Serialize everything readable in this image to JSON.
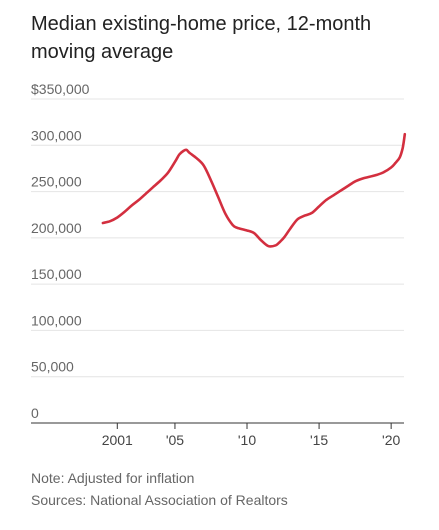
{
  "chart_data": {
    "type": "line",
    "title": "Median existing-home price, 12-month moving average",
    "xlabel": "",
    "ylabel": "",
    "x_tick_labels": [
      "2001",
      "'05",
      "'10",
      "'15",
      "'20"
    ],
    "x_tick_values": [
      2001,
      2005,
      2010,
      2015,
      2020
    ],
    "y_tick_labels": [
      "$350,000",
      "300,000",
      "250,000",
      "200,000",
      "150,000",
      "100,000",
      "50,000",
      "0"
    ],
    "y_tick_values": [
      350000,
      300000,
      250000,
      200000,
      150000,
      100000,
      50000,
      0
    ],
    "xlim": [
      1999.8,
      2021.1
    ],
    "ylim": [
      0,
      350000
    ],
    "grid": true,
    "line_color": "#d32f3f",
    "series": [
      {
        "x": [
          2000.0,
          2000.5,
          2001.0,
          2001.5,
          2002.0,
          2002.5,
          2003.0,
          2003.5,
          2004.0,
          2004.5,
          2005.0,
          2005.3,
          2005.6,
          2005.8,
          2006.0,
          2006.5,
          2007.0,
          2007.5,
          2008.0,
          2008.5,
          2009.0,
          2009.3,
          2009.5,
          2010.0,
          2010.5,
          2011.0,
          2011.5,
          2012.0,
          2012.3,
          2012.6,
          2013.0,
          2013.5,
          2014.0,
          2014.5,
          2015.0,
          2015.5,
          2016.0,
          2016.5,
          2017.0,
          2017.5,
          2018.0,
          2018.5,
          2019.0,
          2019.5,
          2020.0,
          2020.3,
          2020.6,
          2020.8,
          2020.95
        ],
        "values": [
          216000,
          218000,
          222000,
          228000,
          235000,
          241000,
          248000,
          255000,
          262000,
          270000,
          282000,
          290000,
          294000,
          295000,
          292000,
          286000,
          278000,
          262000,
          244000,
          226000,
          214000,
          211000,
          210000,
          208000,
          205000,
          197000,
          191000,
          192000,
          196000,
          201000,
          210000,
          220000,
          224000,
          227000,
          234000,
          241000,
          246000,
          251000,
          256000,
          261000,
          264000,
          266000,
          268000,
          271000,
          276000,
          281000,
          287000,
          297000,
          312000
        ]
      }
    ]
  },
  "footer": {
    "note": "Note: Adjusted for inflation",
    "source": "Sources: National Association of Realtors"
  }
}
